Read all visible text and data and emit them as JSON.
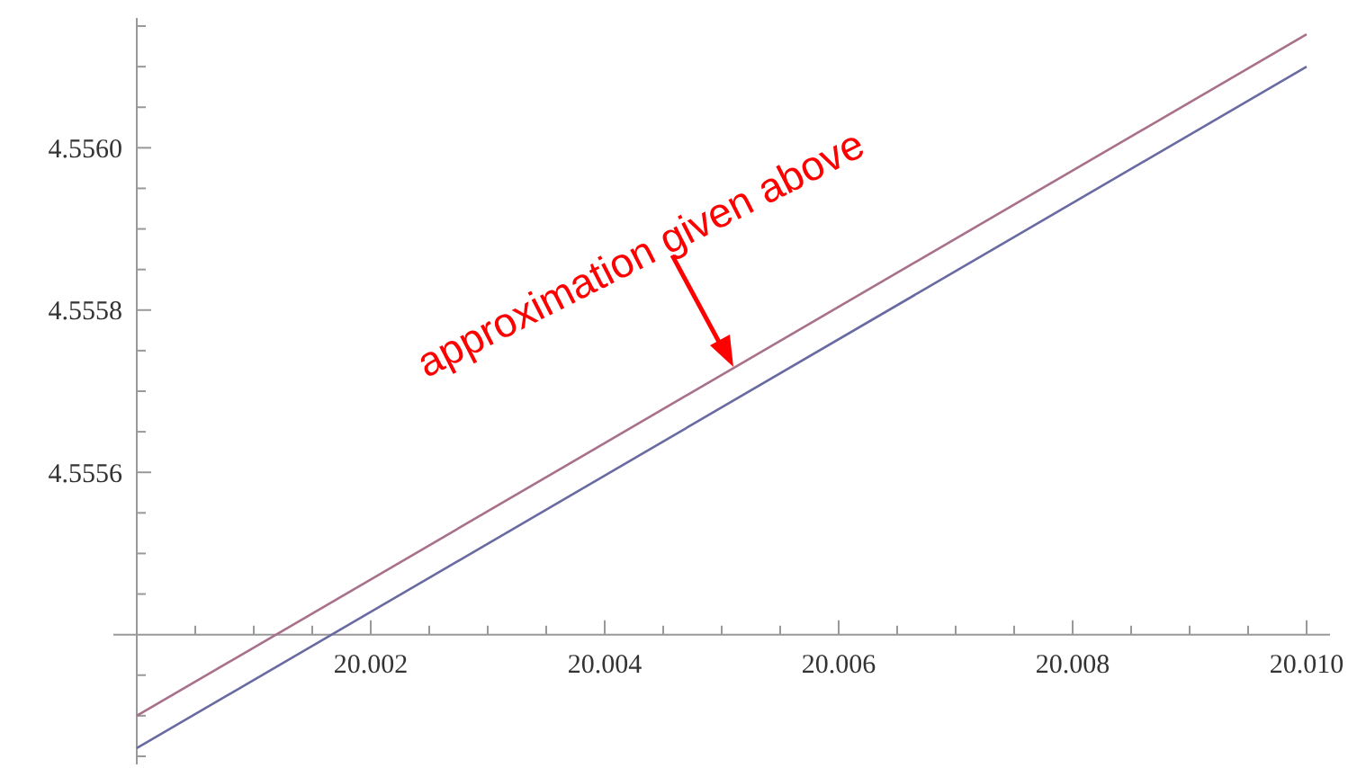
{
  "chart_data": {
    "type": "line",
    "xlim": [
      20.0,
      20.0102
    ],
    "ylim": [
      4.55524,
      4.55616
    ],
    "x": [
      20.0,
      20.01
    ],
    "series": [
      {
        "color": "#a8708a",
        "values": [
          4.5553,
          4.55614
        ]
      },
      {
        "color": "#6a6aa2",
        "values": [
          4.55526,
          4.5561
        ]
      }
    ],
    "xticks": [
      {
        "value": 20.002,
        "label": "20.002"
      },
      {
        "value": 20.004,
        "label": "20.004"
      },
      {
        "value": 20.006,
        "label": "20.006"
      },
      {
        "value": 20.008,
        "label": "20.008"
      },
      {
        "value": 20.01,
        "label": "20.010"
      }
    ],
    "yticks": [
      {
        "value": 4.55525,
        "label": null
      },
      {
        "value": 4.5553,
        "label": null
      },
      {
        "value": 4.55535,
        "label": null
      },
      {
        "value": 4.55545,
        "label": null
      },
      {
        "value": 4.5555,
        "label": null
      },
      {
        "value": 4.55555,
        "label": null
      },
      {
        "value": 4.5556,
        "label": "4.5556"
      },
      {
        "value": 4.55565,
        "label": null
      },
      {
        "value": 4.5557,
        "label": null
      },
      {
        "value": 4.55575,
        "label": null
      },
      {
        "value": 4.5558,
        "label": "4.5558"
      },
      {
        "value": 4.55585,
        "label": null
      },
      {
        "value": 4.5559,
        "label": null
      },
      {
        "value": 4.55595,
        "label": null
      },
      {
        "value": 4.556,
        "label": "4.5560"
      },
      {
        "value": 4.55605,
        "label": null
      },
      {
        "value": 4.5561,
        "label": null
      },
      {
        "value": 4.55615,
        "label": null
      }
    ],
    "annotations": [
      {
        "text": "approximation given above",
        "x": 20.0051,
        "y": 4.55573
      }
    ],
    "marker": "none",
    "line_style": "solid"
  }
}
